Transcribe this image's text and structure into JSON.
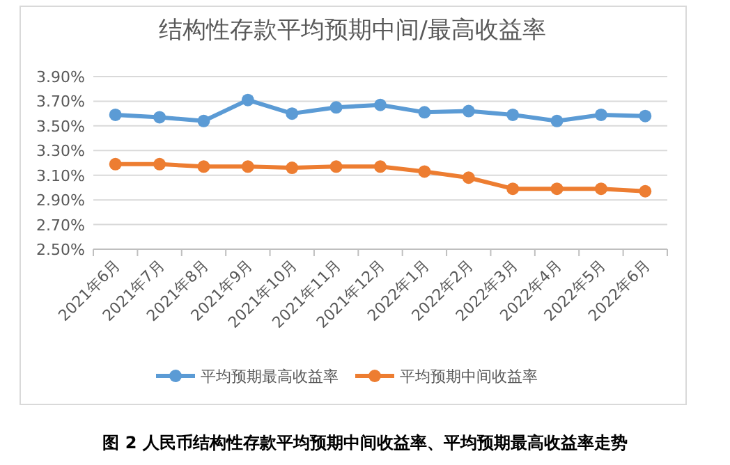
{
  "chart_data": {
    "type": "line",
    "title": "结构性存款平均预期中间/最高收益率",
    "categories": [
      "2021年6月",
      "2021年7月",
      "2021年8月",
      "2021年9月",
      "2021年10月",
      "2021年11月",
      "2021年12月",
      "2022年1月",
      "2022年2月",
      "2022年3月",
      "2022年4月",
      "2022年5月",
      "2022年6月"
    ],
    "series": [
      {
        "name": "平均预期最高收益率",
        "color": "#5b9bd5",
        "values": [
          3.59,
          3.57,
          3.54,
          3.71,
          3.6,
          3.65,
          3.67,
          3.61,
          3.62,
          3.59,
          3.54,
          3.59,
          3.58
        ]
      },
      {
        "name": "平均预期中间收益率",
        "color": "#ed7d31",
        "values": [
          3.19,
          3.19,
          3.17,
          3.17,
          3.16,
          3.17,
          3.17,
          3.13,
          3.08,
          2.99,
          2.99,
          2.99,
          2.97
        ]
      }
    ],
    "ylim": [
      2.5,
      3.9
    ],
    "yticks": [
      {
        "value": 2.5,
        "label": "2.50%"
      },
      {
        "value": 2.7,
        "label": "2.70%"
      },
      {
        "value": 2.9,
        "label": "2.90%"
      },
      {
        "value": 3.1,
        "label": "3.10%"
      },
      {
        "value": 3.3,
        "label": "3.30%"
      },
      {
        "value": 3.5,
        "label": "3.50%"
      },
      {
        "value": 3.7,
        "label": "3.70%"
      },
      {
        "value": 3.9,
        "label": "3.90%"
      }
    ],
    "grid": "y",
    "legend": "bottom",
    "marker": "circle",
    "line_style": "solid",
    "annotations": [
      "图 2  人民币结构性存款平均预期中间收益率、平均预期最高收益率走势"
    ]
  }
}
